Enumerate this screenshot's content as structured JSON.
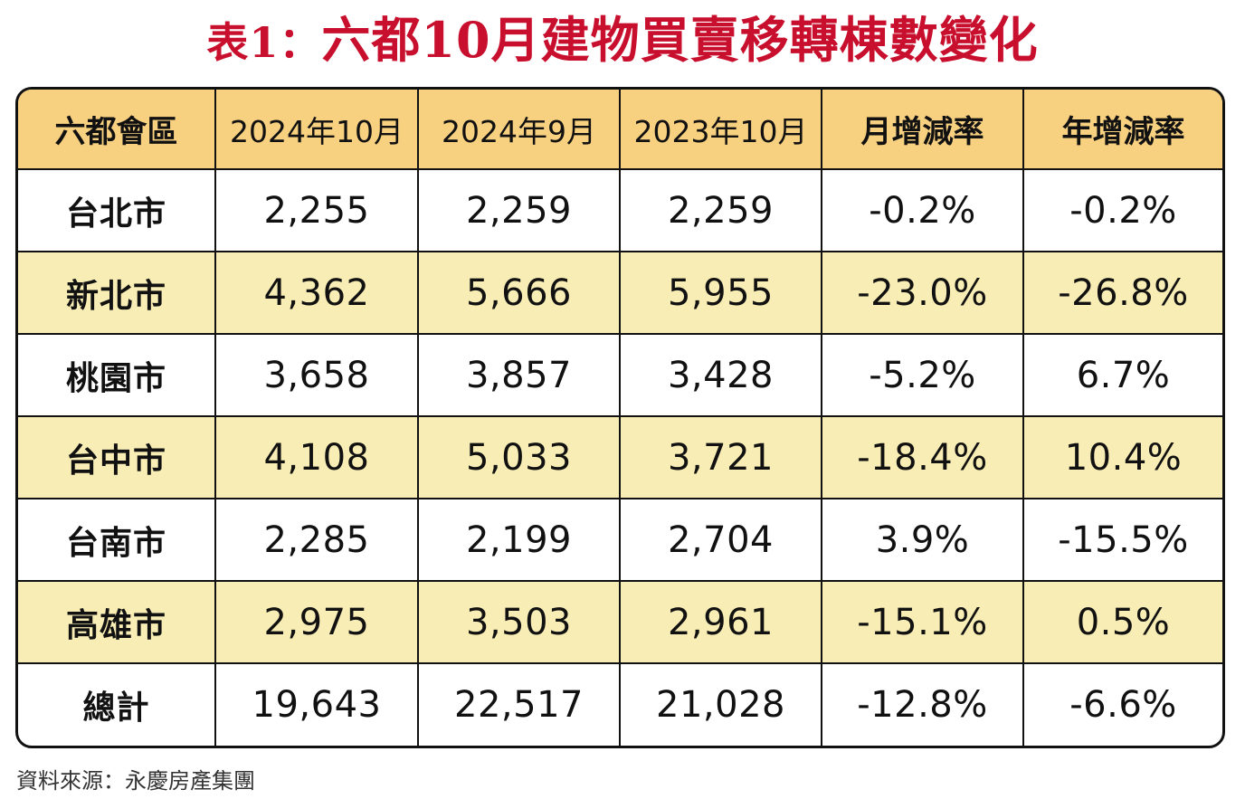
{
  "title": {
    "prefix": "表1：",
    "main": "六都10月建物買賣移轉棟數變化"
  },
  "table": {
    "headers": [
      "六都會區",
      "2024年10月",
      "2024年9月",
      "2023年10月",
      "月增減率",
      "年增減率"
    ],
    "rows": [
      [
        "台北市",
        "2,255",
        "2,259",
        "2,259",
        "-0.2%",
        "-0.2%"
      ],
      [
        "新北市",
        "4,362",
        "5,666",
        "5,955",
        "-23.0%",
        "-26.8%"
      ],
      [
        "桃園市",
        "3,658",
        "3,857",
        "3,428",
        "-5.2%",
        "6.7%"
      ],
      [
        "台中市",
        "4,108",
        "5,033",
        "3,721",
        "-18.4%",
        "10.4%"
      ],
      [
        "台南市",
        "2,285",
        "2,199",
        "2,704",
        "3.9%",
        "-15.5%"
      ],
      [
        "高雄市",
        "2,975",
        "3,503",
        "2,961",
        "-15.1%",
        "0.5%"
      ],
      [
        "總計",
        "19,643",
        "22,517",
        "21,028",
        "-12.8%",
        "-6.6%"
      ]
    ]
  },
  "source": "資料來源：永慶房產集團",
  "colors": {
    "title": "#c8102e",
    "header_bg": "#f7d080",
    "alt_row_bg": "#f8edb4",
    "border": "#111111"
  }
}
